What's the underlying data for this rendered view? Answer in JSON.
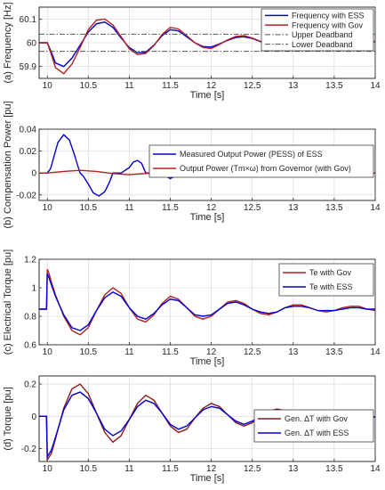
{
  "chart_data": [
    {
      "type": "line",
      "ylabel": "(a) Frequency [Hz]",
      "xlabel": "Time [s]",
      "xlim": [
        9.9,
        14
      ],
      "ylim": [
        59.85,
        60.15
      ],
      "xticks": [
        "10",
        "10.5",
        "11",
        "11.5",
        "12",
        "12.5",
        "13",
        "13.5",
        "14"
      ],
      "yticks": [
        "59.9",
        "60",
        "60.1"
      ],
      "grid": true,
      "legend_position": "top-right",
      "series": [
        {
          "name": "Frequency with ESS",
          "color": "#0000cc",
          "style": "solid",
          "x": [
            9.9,
            10.0,
            10.05,
            10.1,
            10.2,
            10.3,
            10.4,
            10.5,
            10.6,
            10.7,
            10.8,
            10.9,
            11.0,
            11.1,
            11.2,
            11.3,
            11.4,
            11.5,
            11.6,
            11.7,
            11.8,
            11.9,
            12.0,
            12.1,
            12.2,
            12.3,
            12.4,
            12.5,
            12.6,
            12.7,
            12.8,
            12.9,
            13.0,
            13.2,
            13.4,
            13.5,
            13.6,
            13.8,
            14.0
          ],
          "y": [
            60.0,
            60.0,
            59.96,
            59.915,
            59.9,
            59.935,
            59.99,
            60.045,
            60.08,
            60.087,
            60.065,
            60.02,
            59.98,
            59.958,
            59.96,
            59.99,
            60.03,
            60.055,
            60.05,
            60.025,
            60.0,
            59.984,
            59.982,
            59.995,
            60.01,
            60.022,
            60.025,
            60.018,
            60.005,
            59.995,
            59.99,
            59.992,
            60.0,
            60.012,
            60.01,
            60.005,
            60.0,
            59.995,
            60.005
          ]
        },
        {
          "name": "Frequency with Gov",
          "color": "#b22222",
          "style": "solid",
          "x": [
            9.9,
            10.0,
            10.05,
            10.1,
            10.2,
            10.3,
            10.4,
            10.5,
            10.6,
            10.7,
            10.8,
            10.9,
            11.0,
            11.1,
            11.2,
            11.3,
            11.4,
            11.5,
            11.6,
            11.7,
            11.8,
            11.9,
            12.0,
            12.1,
            12.2,
            12.3,
            12.4,
            12.5,
            12.6,
            12.7,
            12.8,
            12.9,
            13.0,
            13.2,
            13.4,
            13.5,
            13.6,
            13.8,
            14.0
          ],
          "y": [
            60.0,
            60.0,
            59.95,
            59.895,
            59.87,
            59.91,
            59.98,
            60.055,
            60.095,
            60.1,
            60.075,
            60.025,
            59.975,
            59.95,
            59.955,
            59.988,
            60.035,
            60.065,
            60.058,
            60.03,
            60.0,
            59.98,
            59.976,
            59.993,
            60.012,
            60.027,
            60.03,
            60.02,
            60.006,
            59.993,
            59.988,
            59.99,
            60.0,
            60.015,
            60.012,
            60.006,
            60.0,
            59.993,
            60.006
          ]
        },
        {
          "name": "Upper Deadband",
          "color": "#555555",
          "style": "dashdot",
          "x": [
            9.9,
            14.0
          ],
          "y": [
            60.036,
            60.036
          ]
        },
        {
          "name": "Lower Deadband",
          "color": "#555555",
          "style": "dashdot",
          "x": [
            9.9,
            14.0
          ],
          "y": [
            59.964,
            59.964
          ]
        }
      ]
    },
    {
      "type": "line",
      "ylabel": "(b) Compensation Power [pu]",
      "xlabel": "Time [s]",
      "xlim": [
        9.9,
        14
      ],
      "ylim": [
        -0.025,
        0.04
      ],
      "xticks": [
        "10",
        "10.5",
        "11",
        "11.5",
        "12",
        "12.5",
        "13",
        "13.5",
        "14"
      ],
      "yticks": [
        "-0.02",
        "0",
        "0.02",
        "0.04"
      ],
      "grid": true,
      "legend_position": "top-right",
      "series": [
        {
          "name": "Measured Output Power (PESS) of ESS",
          "color": "#0000cc",
          "style": "solid",
          "x": [
            9.9,
            10.0,
            10.04,
            10.08,
            10.13,
            10.2,
            10.27,
            10.33,
            10.37,
            10.4,
            10.44,
            10.5,
            10.56,
            10.63,
            10.7,
            10.76,
            10.8,
            10.9,
            11.0,
            11.05,
            11.1,
            11.15,
            11.2,
            11.3,
            11.4,
            11.45,
            11.5,
            11.55,
            11.6,
            11.7,
            11.8,
            11.9,
            12.0,
            12.1,
            12.2,
            12.5,
            13.0,
            14.0
          ],
          "y": [
            0,
            0,
            0.004,
            0.015,
            0.028,
            0.035,
            0.03,
            0.017,
            0.007,
            0,
            -0.003,
            -0.01,
            -0.018,
            -0.021,
            -0.017,
            -0.008,
            0,
            0,
            0.005,
            0.01,
            0.0115,
            0.009,
            0,
            0,
            0,
            -0.003,
            -0.005,
            -0.003,
            0,
            0,
            0,
            0.0008,
            0.0012,
            0.0008,
            0,
            0,
            0,
            0
          ]
        },
        {
          "name": "Output Power (Tm×ω) from Governor (with Gov)",
          "color": "#b22222",
          "style": "solid",
          "x": [
            9.9,
            10.0,
            10.2,
            10.4,
            10.6,
            10.8,
            11.0,
            11.2,
            11.4,
            11.6,
            11.8,
            12.0,
            12.5,
            13.0,
            14.0
          ],
          "y": [
            0,
            0,
            0.0015,
            0.0025,
            0.0015,
            -0.0005,
            -0.0015,
            -0.0005,
            0.0008,
            0.0006,
            -0.0002,
            -0.0003,
            0,
            0,
            0
          ]
        }
      ]
    },
    {
      "type": "line",
      "ylabel": "(c) Electrical Torque [pu]",
      "xlabel": "Time [s]",
      "xlim": [
        9.9,
        14
      ],
      "ylim": [
        0.6,
        1.2
      ],
      "xticks": [
        "10",
        "10.5",
        "11",
        "11.5",
        "12",
        "12.5",
        "13",
        "13.5",
        "14"
      ],
      "yticks": [
        "0.6",
        "0.8",
        "1",
        "1.2"
      ],
      "grid": true,
      "legend_position": "top-right",
      "series": [
        {
          "name": "Te with Gov",
          "color": "#b22222",
          "style": "solid",
          "x": [
            9.9,
            9.99,
            10.0,
            10.02,
            10.05,
            10.1,
            10.2,
            10.3,
            10.4,
            10.5,
            10.6,
            10.7,
            10.8,
            10.9,
            11.0,
            11.1,
            11.2,
            11.3,
            11.4,
            11.5,
            11.6,
            11.7,
            11.8,
            11.9,
            12.0,
            12.1,
            12.2,
            12.3,
            12.4,
            12.5,
            12.6,
            12.7,
            12.8,
            12.9,
            13.0,
            13.1,
            13.2,
            13.3,
            13.4,
            13.5,
            13.6,
            13.7,
            13.8,
            13.9,
            14.0
          ],
          "y": [
            0.85,
            0.85,
            1.13,
            1.1,
            1.04,
            0.95,
            0.8,
            0.7,
            0.67,
            0.72,
            0.84,
            0.95,
            1.0,
            0.96,
            0.86,
            0.78,
            0.76,
            0.81,
            0.89,
            0.94,
            0.92,
            0.86,
            0.8,
            0.78,
            0.8,
            0.85,
            0.9,
            0.91,
            0.89,
            0.85,
            0.82,
            0.81,
            0.83,
            0.86,
            0.88,
            0.88,
            0.86,
            0.84,
            0.83,
            0.84,
            0.86,
            0.87,
            0.87,
            0.85,
            0.84
          ]
        },
        {
          "name": "Te with ESS",
          "color": "#0000cc",
          "style": "solid",
          "x": [
            9.9,
            9.99,
            10.0,
            10.02,
            10.05,
            10.1,
            10.2,
            10.3,
            10.4,
            10.5,
            10.6,
            10.7,
            10.8,
            10.9,
            11.0,
            11.1,
            11.2,
            11.3,
            11.4,
            11.5,
            11.6,
            11.7,
            11.8,
            11.9,
            12.0,
            12.1,
            12.2,
            12.3,
            12.4,
            12.5,
            12.6,
            12.7,
            12.8,
            12.9,
            13.0,
            13.1,
            13.2,
            13.3,
            13.4,
            13.5,
            13.6,
            13.7,
            13.8,
            13.9,
            14.0
          ],
          "y": [
            0.85,
            0.85,
            1.1,
            1.07,
            1.02,
            0.94,
            0.81,
            0.72,
            0.7,
            0.74,
            0.84,
            0.93,
            0.97,
            0.94,
            0.86,
            0.8,
            0.78,
            0.82,
            0.88,
            0.92,
            0.91,
            0.86,
            0.81,
            0.8,
            0.81,
            0.85,
            0.89,
            0.9,
            0.88,
            0.85,
            0.83,
            0.82,
            0.83,
            0.86,
            0.87,
            0.87,
            0.86,
            0.84,
            0.84,
            0.84,
            0.85,
            0.86,
            0.86,
            0.85,
            0.85
          ]
        }
      ]
    },
    {
      "type": "line",
      "ylabel": "(d) Torque [pu]",
      "xlabel": "Time [s]",
      "xlim": [
        9.9,
        14
      ],
      "ylim": [
        -0.28,
        0.25
      ],
      "xticks": [
        "10",
        "10.5",
        "11",
        "11.5",
        "12",
        "12.5",
        "13",
        "13.5",
        "14"
      ],
      "yticks": [
        "-0.2",
        "0",
        "0.2"
      ],
      "grid": true,
      "legend_position": "bottom-right",
      "series": [
        {
          "name": "Gen. ΔT with Gov",
          "color": "#8b1a1a",
          "style": "solid",
          "x": [
            9.9,
            9.99,
            10.0,
            10.05,
            10.1,
            10.2,
            10.3,
            10.4,
            10.5,
            10.6,
            10.7,
            10.8,
            10.9,
            11.0,
            11.1,
            11.2,
            11.3,
            11.4,
            11.5,
            11.6,
            11.7,
            11.8,
            11.9,
            12.0,
            12.1,
            12.2,
            12.3,
            12.4,
            12.5,
            12.6,
            12.7,
            12.8,
            12.9,
            13.0,
            13.1,
            13.2,
            13.3,
            13.4,
            13.5,
            13.6,
            13.7,
            13.8,
            13.9,
            14.0
          ],
          "y": [
            0,
            0,
            -0.27,
            -0.23,
            -0.14,
            0.05,
            0.17,
            0.2,
            0.14,
            0.02,
            -0.1,
            -0.16,
            -0.12,
            -0.02,
            0.08,
            0.13,
            0.1,
            0.02,
            -0.06,
            -0.1,
            -0.08,
            -0.01,
            0.05,
            0.08,
            0.06,
            0.01,
            -0.04,
            -0.06,
            -0.04,
            0,
            0.03,
            0.045,
            0.035,
            0.005,
            -0.02,
            -0.03,
            -0.02,
            0,
            0.015,
            0.02,
            0.01,
            0,
            -0.01,
            -0.005
          ]
        },
        {
          "name": "Gen. ΔT with ESS",
          "color": "#0000cc",
          "style": "solid",
          "x": [
            9.9,
            9.99,
            10.0,
            10.05,
            10.1,
            10.2,
            10.3,
            10.4,
            10.5,
            10.6,
            10.7,
            10.8,
            10.9,
            11.0,
            11.1,
            11.2,
            11.3,
            11.4,
            11.5,
            11.6,
            11.7,
            11.8,
            11.9,
            12.0,
            12.1,
            12.2,
            12.3,
            12.4,
            12.5,
            12.6,
            12.7,
            12.8,
            12.9,
            13.0,
            13.1,
            13.2,
            13.3,
            13.4,
            13.5,
            13.6,
            13.7,
            13.8,
            13.9,
            14.0
          ],
          "y": [
            0,
            0,
            -0.25,
            -0.21,
            -0.13,
            0.04,
            0.13,
            0.15,
            0.11,
            0.02,
            -0.08,
            -0.12,
            -0.09,
            -0.02,
            0.06,
            0.1,
            0.08,
            0.02,
            -0.05,
            -0.08,
            -0.06,
            -0.01,
            0.04,
            0.06,
            0.05,
            0.01,
            -0.03,
            -0.05,
            -0.03,
            0,
            0.025,
            0.035,
            0.03,
            0.005,
            -0.015,
            -0.025,
            -0.015,
            0,
            0.012,
            0.015,
            0.008,
            0,
            -0.008,
            -0.004
          ]
        }
      ]
    }
  ]
}
